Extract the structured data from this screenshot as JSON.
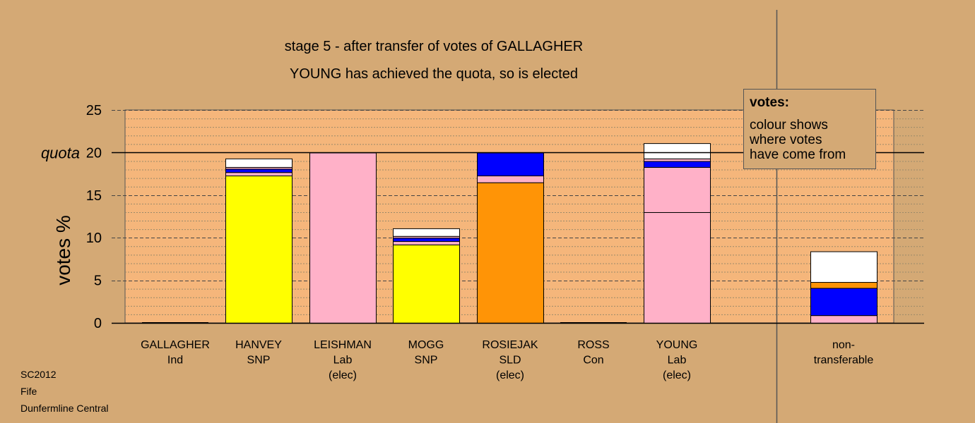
{
  "source": {
    "line1": "SC2012",
    "line2": "Fife",
    "line3": "Dunfermline Central"
  },
  "legend": {
    "title": "votes:",
    "lines": [
      "colour shows",
      "where votes",
      "have come from"
    ]
  },
  "colors": {
    "background": "#d4a975",
    "plot_background": "#f5b67b",
    "SNP": "#ffff00",
    "Lab": "#ffb1c8",
    "SLD": "#ff9406",
    "Con": "#0000ff",
    "other": "#ffffff"
  },
  "chart_data": {
    "type": "bar",
    "stacked": true,
    "title": "stage 5 - after transfer of votes of GALLAGHER",
    "subtitle": "YOUNG has achieved the quota, so is elected",
    "ylabel": "votes %",
    "ylim": [
      0,
      25
    ],
    "yticks": [
      0,
      5,
      10,
      15,
      20,
      25
    ],
    "quota": 20,
    "quota_label": "quota",
    "grid": true,
    "legend_position": "top-right",
    "categories": [
      {
        "name": "GALLAGHER",
        "party": "Ind",
        "note": ""
      },
      {
        "name": "HANVEY",
        "party": "SNP",
        "note": ""
      },
      {
        "name": "LEISHMAN",
        "party": "Lab",
        "note": "(elec)"
      },
      {
        "name": "MOGG",
        "party": "SNP",
        "note": ""
      },
      {
        "name": "ROSIEJAK",
        "party": "SLD",
        "note": "(elec)"
      },
      {
        "name": "ROSS",
        "party": "Con",
        "note": ""
      },
      {
        "name": "YOUNG",
        "party": "Lab",
        "note": "(elec)"
      },
      {
        "name": "non-",
        "party": "transferable",
        "note": ""
      }
    ],
    "stacks": [
      [],
      [
        {
          "color": "#ffff00",
          "value": 17.3
        },
        {
          "color": "#ffb1c8",
          "value": 0.4
        },
        {
          "color": "#0000ff",
          "value": 0.4
        },
        {
          "color": "#ffb1c8",
          "value": 0.2
        },
        {
          "color": "#ffffff",
          "value": 1.0
        }
      ],
      [
        {
          "color": "#ffb1c8",
          "value": 20.0
        }
      ],
      [
        {
          "color": "#ffff00",
          "value": 9.2
        },
        {
          "color": "#ffb1c8",
          "value": 0.4
        },
        {
          "color": "#0000ff",
          "value": 0.4
        },
        {
          "color": "#ffb1c8",
          "value": 0.2
        },
        {
          "color": "#ffffff",
          "value": 0.9
        }
      ],
      [
        {
          "color": "#ff9406",
          "value": 16.5
        },
        {
          "color": "#ffb1c8",
          "value": 0.8
        },
        {
          "color": "#0000ff",
          "value": 2.7
        }
      ],
      [],
      [
        {
          "color": "#ffb1c8",
          "value": 13.0
        },
        {
          "color": "#ffb1c8",
          "value": 5.3
        },
        {
          "color": "#0000ff",
          "value": 0.7
        },
        {
          "color": "#ffb1c8",
          "value": 0.3
        },
        {
          "color": "#ffffff",
          "value": 1.8
        }
      ],
      [
        {
          "color": "#ffb1c8",
          "value": 0.9
        },
        {
          "color": "#0000ff",
          "value": 3.2
        },
        {
          "color": "#ff9406",
          "value": 0.7
        },
        {
          "color": "#ffffff",
          "value": 3.6
        }
      ]
    ]
  }
}
